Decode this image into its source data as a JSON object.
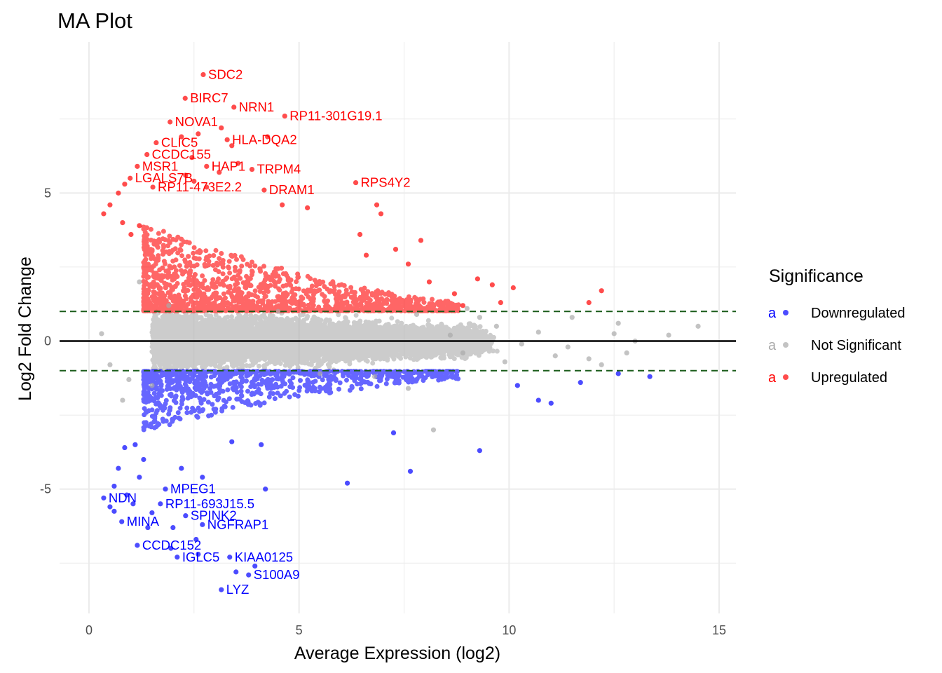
{
  "chart_data": {
    "type": "scatter",
    "title": "MA Plot",
    "xlabel": "Average Expression (log2)",
    "ylabel": "Log2 Fold Change",
    "xlim": [
      -0.7,
      15.4
    ],
    "ylim": [
      -9.2,
      10.1
    ],
    "x_ticks": [
      0,
      5,
      10,
      15
    ],
    "y_ticks": [
      -5,
      0,
      5
    ],
    "grid": true,
    "reference_lines": {
      "zero": {
        "y": 0,
        "color": "#000000",
        "style": "solid"
      },
      "thresholds": {
        "y": [
          1,
          -1
        ],
        "color": "#1a5c1a",
        "style": "dashed"
      }
    },
    "legend": {
      "title": "Significance",
      "position": "right",
      "glyph": "a",
      "entries": [
        {
          "name": "Downregulated",
          "color": "#0000ff"
        },
        {
          "name": "Not Significant",
          "color": "#aaaaaa"
        },
        {
          "name": "Upregulated",
          "color": "#ff0000"
        }
      ]
    },
    "series": [
      {
        "name": "Upregulated",
        "color": "#ff0000",
        "points": [
          {
            "x": 2.72,
            "y": 9.0,
            "label": "SDC2"
          },
          {
            "x": 2.29,
            "y": 8.2,
            "label": "BIRC7"
          },
          {
            "x": 3.45,
            "y": 7.9,
            "label": "NRN1"
          },
          {
            "x": 4.66,
            "y": 7.6,
            "label": "RP11-301G19.1"
          },
          {
            "x": 1.93,
            "y": 7.4,
            "label": "NOVA1"
          },
          {
            "x": 3.29,
            "y": 6.8,
            "label": "HLA-DQA2"
          },
          {
            "x": 1.6,
            "y": 6.7,
            "label": "CLIC5"
          },
          {
            "x": 1.38,
            "y": 6.3,
            "label": "CCDC155"
          },
          {
            "x": 2.8,
            "y": 5.9,
            "label": "HAP1"
          },
          {
            "x": 1.15,
            "y": 5.9,
            "label": "MSR1"
          },
          {
            "x": 3.88,
            "y": 5.8,
            "label": "TRPM4"
          },
          {
            "x": 0.98,
            "y": 5.5,
            "label": "LGALS7B"
          },
          {
            "x": 6.35,
            "y": 5.35,
            "label": "RPS4Y2"
          },
          {
            "x": 1.52,
            "y": 5.2,
            "label": "RP11-473E2.2"
          },
          {
            "x": 4.17,
            "y": 5.1,
            "label": "DRAM1"
          },
          {
            "x": 0.35,
            "y": 4.3
          },
          {
            "x": 0.5,
            "y": 4.6
          },
          {
            "x": 0.7,
            "y": 5.0
          },
          {
            "x": 0.85,
            "y": 5.3
          },
          {
            "x": 2.6,
            "y": 7.0
          },
          {
            "x": 3.15,
            "y": 7.2
          },
          {
            "x": 2.2,
            "y": 6.9
          },
          {
            "x": 2.45,
            "y": 6.2
          },
          {
            "x": 2.3,
            "y": 5.6
          },
          {
            "x": 2.5,
            "y": 5.4
          },
          {
            "x": 4.25,
            "y": 6.9
          },
          {
            "x": 3.4,
            "y": 6.6
          },
          {
            "x": 3.55,
            "y": 6.0
          },
          {
            "x": 3.1,
            "y": 5.7
          },
          {
            "x": 2.8,
            "y": 5.2
          },
          {
            "x": 4.6,
            "y": 4.6
          },
          {
            "x": 6.85,
            "y": 4.6
          },
          {
            "x": 6.95,
            "y": 4.3
          },
          {
            "x": 5.2,
            "y": 4.5
          },
          {
            "x": 6.45,
            "y": 3.6
          },
          {
            "x": 7.9,
            "y": 3.4
          },
          {
            "x": 7.3,
            "y": 3.1
          },
          {
            "x": 6.6,
            "y": 2.9
          },
          {
            "x": 7.6,
            "y": 2.6
          },
          {
            "x": 8.1,
            "y": 2.0
          },
          {
            "x": 9.25,
            "y": 2.1
          },
          {
            "x": 9.6,
            "y": 1.9
          },
          {
            "x": 10.1,
            "y": 1.8
          },
          {
            "x": 12.2,
            "y": 1.7
          },
          {
            "x": 11.9,
            "y": 1.3
          },
          {
            "x": 8.7,
            "y": 1.6
          },
          {
            "x": 8.9,
            "y": 1.2
          },
          {
            "x": 9.8,
            "y": 1.3
          },
          {
            "x": 0.8,
            "y": 4.0
          },
          {
            "x": 1.0,
            "y": 3.6
          },
          {
            "x": 1.2,
            "y": 3.9
          }
        ]
      },
      {
        "name": "Downregulated",
        "color": "#0000ff",
        "points": [
          {
            "x": 1.82,
            "y": -5.0,
            "label": "MPEG1"
          },
          {
            "x": 0.35,
            "y": -5.3,
            "label": "NDN"
          },
          {
            "x": 1.7,
            "y": -5.5,
            "label": "RP11-693J15.5"
          },
          {
            "x": 2.3,
            "y": -5.9,
            "label": "SPINK2"
          },
          {
            "x": 0.78,
            "y": -6.1,
            "label": "MINA"
          },
          {
            "x": 2.7,
            "y": -6.2,
            "label": "NGFRAP1"
          },
          {
            "x": 1.15,
            "y": -6.9,
            "label": "CCDC152"
          },
          {
            "x": 2.1,
            "y": -7.3,
            "label": "IGLC5"
          },
          {
            "x": 3.35,
            "y": -7.3,
            "label": "KIAA0125"
          },
          {
            "x": 3.8,
            "y": -7.9,
            "label": "S100A9"
          },
          {
            "x": 3.15,
            "y": -8.4,
            "label": "LYZ"
          },
          {
            "x": 0.5,
            "y": -5.6
          },
          {
            "x": 0.6,
            "y": -5.75
          },
          {
            "x": 0.9,
            "y": -5.2
          },
          {
            "x": 1.05,
            "y": -5.5
          },
          {
            "x": 1.4,
            "y": -6.3
          },
          {
            "x": 2.0,
            "y": -6.3
          },
          {
            "x": 1.5,
            "y": -5.8
          },
          {
            "x": 2.55,
            "y": -6.7
          },
          {
            "x": 1.95,
            "y": -7.0
          },
          {
            "x": 2.6,
            "y": -7.2
          },
          {
            "x": 3.95,
            "y": -7.6
          },
          {
            "x": 3.5,
            "y": -7.8
          },
          {
            "x": 4.2,
            "y": -5.0
          },
          {
            "x": 6.15,
            "y": -4.8
          },
          {
            "x": 7.65,
            "y": -4.4
          },
          {
            "x": 9.3,
            "y": -3.7
          },
          {
            "x": 7.25,
            "y": -3.1
          },
          {
            "x": 10.7,
            "y": -2.0
          },
          {
            "x": 11.0,
            "y": -2.1
          },
          {
            "x": 10.2,
            "y": -1.5
          },
          {
            "x": 11.7,
            "y": -1.4
          },
          {
            "x": 13.35,
            "y": -1.2
          },
          {
            "x": 12.6,
            "y": -1.1
          },
          {
            "x": 0.85,
            "y": -3.6
          },
          {
            "x": 1.1,
            "y": -3.5
          },
          {
            "x": 1.3,
            "y": -4.0
          },
          {
            "x": 0.7,
            "y": -4.3
          },
          {
            "x": 0.6,
            "y": -4.9
          },
          {
            "x": 1.2,
            "y": -4.6
          },
          {
            "x": 2.2,
            "y": -4.3
          },
          {
            "x": 2.7,
            "y": -4.6
          },
          {
            "x": 3.4,
            "y": -3.4
          },
          {
            "x": 4.1,
            "y": -3.5
          }
        ]
      },
      {
        "name": "Not Significant",
        "color": "#aaaaaa",
        "points": [
          {
            "x": 14.5,
            "y": 0.5
          },
          {
            "x": 13.0,
            "y": 0.0
          },
          {
            "x": 12.8,
            "y": -0.4
          },
          {
            "x": 12.5,
            "y": 0.25
          },
          {
            "x": 12.6,
            "y": 0.6
          },
          {
            "x": 11.5,
            "y": 0.8
          },
          {
            "x": 11.1,
            "y": -0.5
          },
          {
            "x": 11.9,
            "y": -0.6
          },
          {
            "x": 12.2,
            "y": -0.8
          },
          {
            "x": 11.4,
            "y": -0.2
          },
          {
            "x": 10.7,
            "y": 0.3
          },
          {
            "x": 10.3,
            "y": -0.1
          },
          {
            "x": 9.7,
            "y": 0.5
          },
          {
            "x": 9.9,
            "y": -0.7
          },
          {
            "x": 9.3,
            "y": 0.8
          },
          {
            "x": 8.9,
            "y": -0.4
          },
          {
            "x": 8.6,
            "y": 0.2
          },
          {
            "x": 8.2,
            "y": -3.0
          },
          {
            "x": 7.6,
            "y": -1.6
          },
          {
            "x": 0.5,
            "y": -0.8
          },
          {
            "x": 0.3,
            "y": 0.25
          },
          {
            "x": 0.8,
            "y": -2.0
          },
          {
            "x": 0.95,
            "y": -1.3
          },
          {
            "x": 1.2,
            "y": 2.0
          },
          {
            "x": 1.5,
            "y": -1.5
          },
          {
            "x": 1.9,
            "y": 1.2
          },
          {
            "x": 13.8,
            "y": 0.2
          },
          {
            "x": 9.0,
            "y": 1.1
          },
          {
            "x": 7.8,
            "y": 0.9
          },
          {
            "x": 6.8,
            "y": -1.2
          },
          {
            "x": 5.5,
            "y": -1.1
          },
          {
            "x": 4.5,
            "y": 1.0
          }
        ]
      }
    ]
  }
}
